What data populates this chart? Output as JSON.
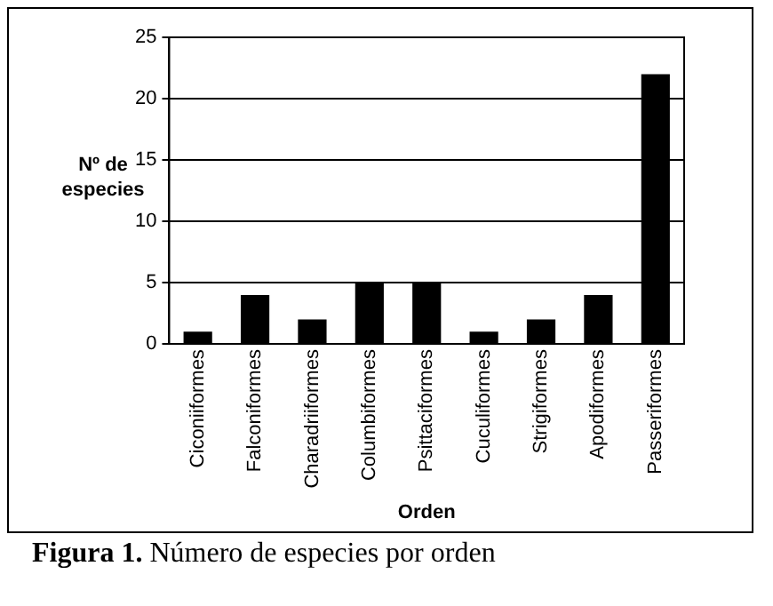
{
  "chart_data": {
    "type": "bar",
    "ylabel": "Nº de especies",
    "xlabel": "Orden",
    "categories": [
      "Ciconiiformes",
      "Falconiformes",
      "Charadriiformes",
      "Columbiformes",
      "Psittaciformes",
      "Cuculiformes",
      "Strigiformes",
      "Apodiformes",
      "Passeriformes"
    ],
    "values": [
      1,
      4,
      2,
      5,
      5,
      1,
      2,
      4,
      22
    ],
    "color": "#000000",
    "ylim": [
      0,
      25
    ],
    "yticks": [
      0,
      5,
      10,
      15,
      20,
      25
    ],
    "grid": "y",
    "legend": false,
    "annotations": [
      "Figura 1. Número de especies por orden"
    ]
  }
}
